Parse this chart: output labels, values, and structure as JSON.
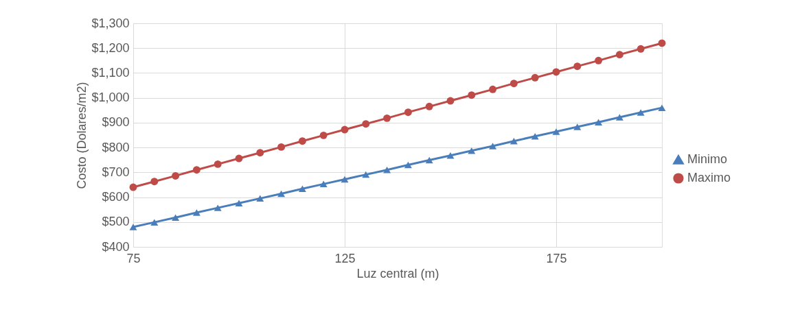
{
  "chart_data": {
    "type": "line",
    "xlabel": "Luz central (m)",
    "ylabel": "Costo (Dolares/m2)",
    "x": [
      75,
      80,
      85,
      90,
      95,
      100,
      105,
      110,
      115,
      120,
      125,
      130,
      135,
      140,
      145,
      150,
      155,
      160,
      165,
      170,
      175,
      180,
      185,
      190,
      195,
      200
    ],
    "series": [
      {
        "name": "Minimo",
        "color": "#4a7ebb",
        "marker": "triangle",
        "values": [
          480,
          499,
          518,
          538,
          557,
          576,
          595,
          614,
          634,
          653,
          672,
          691,
          710,
          730,
          749,
          768,
          787,
          806,
          826,
          845,
          864,
          883,
          902,
          922,
          941,
          960
        ]
      },
      {
        "name": "Maximo",
        "color": "#be4b48",
        "marker": "circle",
        "values": [
          640,
          663,
          686,
          710,
          733,
          756,
          779,
          802,
          826,
          849,
          872,
          895,
          918,
          942,
          965,
          988,
          1011,
          1034,
          1058,
          1081,
          1104,
          1127,
          1150,
          1174,
          1197,
          1220
        ]
      }
    ],
    "xlim": [
      75,
      200
    ],
    "xticks": [
      75,
      125,
      175
    ],
    "ylim": [
      400,
      1300
    ],
    "yticks": [
      {
        "value": 400,
        "label": "$400"
      },
      {
        "value": 500,
        "label": "$500"
      },
      {
        "value": 600,
        "label": "$600"
      },
      {
        "value": 700,
        "label": "$700"
      },
      {
        "value": 800,
        "label": "$800"
      },
      {
        "value": 900,
        "label": "$900"
      },
      {
        "value": 1000,
        "label": "$1,000"
      },
      {
        "value": 1100,
        "label": "$1,100"
      },
      {
        "value": 1200,
        "label": "$1,200"
      },
      {
        "value": 1300,
        "label": "$1,300"
      }
    ],
    "grid": true,
    "legend": "right",
    "line_style": "solid"
  }
}
